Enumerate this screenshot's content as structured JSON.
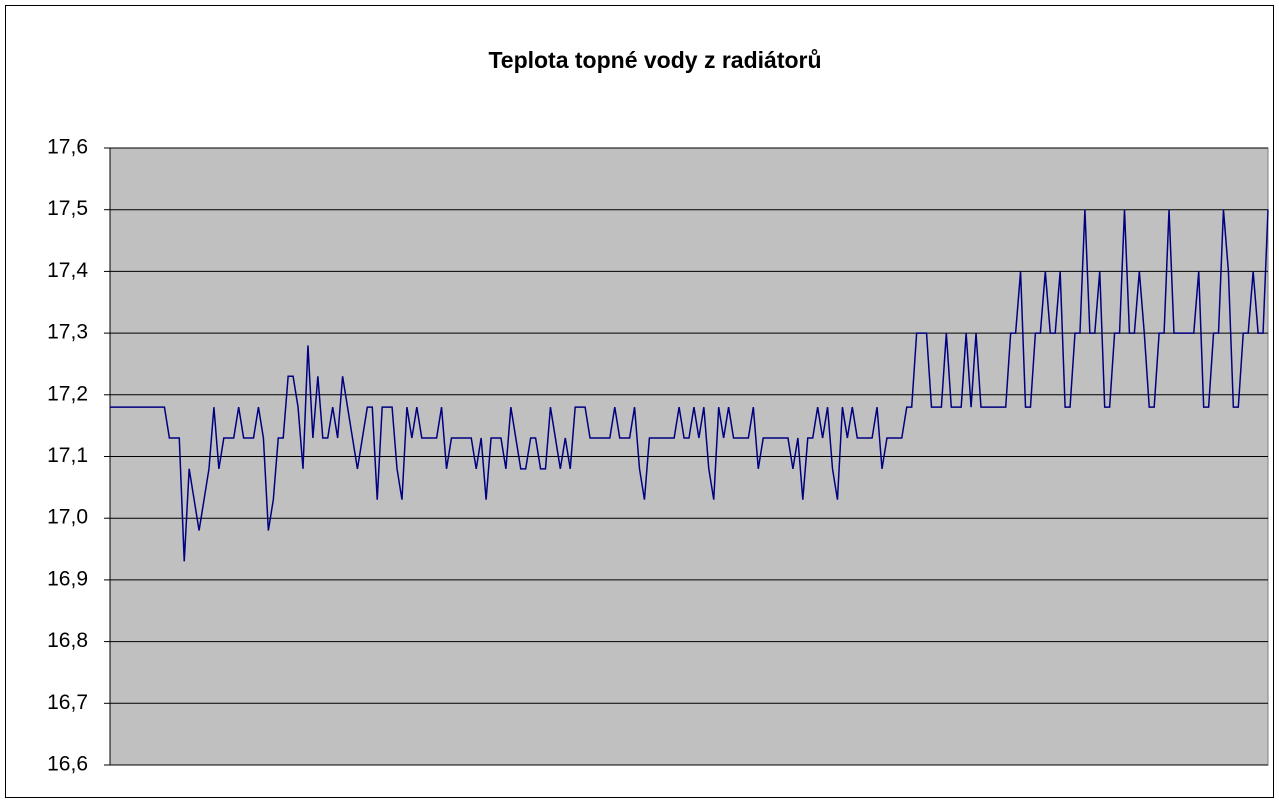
{
  "chart_data": {
    "type": "line",
    "title": "Teplota topné vody z radiátorů",
    "series": [
      {
        "name": null,
        "color": "#000080",
        "values": [
          17.18,
          17.18,
          17.18,
          17.18,
          17.18,
          17.18,
          17.18,
          17.18,
          17.18,
          17.18,
          17.18,
          17.18,
          17.13,
          17.13,
          17.13,
          16.93,
          17.08,
          17.03,
          16.98,
          17.03,
          17.08,
          17.18,
          17.08,
          17.13,
          17.13,
          17.13,
          17.18,
          17.13,
          17.13,
          17.13,
          17.18,
          17.13,
          16.98,
          17.03,
          17.13,
          17.13,
          17.23,
          17.23,
          17.18,
          17.08,
          17.28,
          17.13,
          17.23,
          17.13,
          17.13,
          17.18,
          17.13,
          17.23,
          17.18,
          17.13,
          17.08,
          17.13,
          17.18,
          17.18,
          17.03,
          17.18,
          17.18,
          17.18,
          17.08,
          17.03,
          17.18,
          17.13,
          17.18,
          17.13,
          17.13,
          17.13,
          17.13,
          17.18,
          17.08,
          17.13,
          17.13,
          17.13,
          17.13,
          17.13,
          17.08,
          17.13,
          17.03,
          17.13,
          17.13,
          17.13,
          17.08,
          17.18,
          17.13,
          17.08,
          17.08,
          17.13,
          17.13,
          17.08,
          17.08,
          17.18,
          17.13,
          17.08,
          17.13,
          17.08,
          17.18,
          17.18,
          17.18,
          17.13,
          17.13,
          17.13,
          17.13,
          17.13,
          17.18,
          17.13,
          17.13,
          17.13,
          17.18,
          17.08,
          17.03,
          17.13,
          17.13,
          17.13,
          17.13,
          17.13,
          17.13,
          17.18,
          17.13,
          17.13,
          17.18,
          17.13,
          17.18,
          17.08,
          17.03,
          17.18,
          17.13,
          17.18,
          17.13,
          17.13,
          17.13,
          17.13,
          17.18,
          17.08,
          17.13,
          17.13,
          17.13,
          17.13,
          17.13,
          17.13,
          17.08,
          17.13,
          17.03,
          17.13,
          17.13,
          17.18,
          17.13,
          17.18,
          17.08,
          17.03,
          17.18,
          17.13,
          17.18,
          17.13,
          17.13,
          17.13,
          17.13,
          17.18,
          17.08,
          17.13,
          17.13,
          17.13,
          17.13,
          17.18,
          17.18,
          17.3,
          17.3,
          17.3,
          17.18,
          17.18,
          17.18,
          17.3,
          17.18,
          17.18,
          17.18,
          17.3,
          17.18,
          17.3,
          17.18,
          17.18,
          17.18,
          17.18,
          17.18,
          17.18,
          17.3,
          17.3,
          17.4,
          17.18,
          17.18,
          17.3,
          17.3,
          17.4,
          17.3,
          17.3,
          17.4,
          17.18,
          17.18,
          17.3,
          17.3,
          17.5,
          17.3,
          17.3,
          17.4,
          17.18,
          17.18,
          17.3,
          17.3,
          17.5,
          17.3,
          17.3,
          17.4,
          17.3,
          17.18,
          17.18,
          17.3,
          17.3,
          17.5,
          17.3,
          17.3,
          17.3,
          17.3,
          17.3,
          17.4,
          17.18,
          17.18,
          17.3,
          17.3,
          17.5,
          17.4,
          17.18,
          17.18,
          17.3,
          17.3,
          17.4,
          17.3,
          17.3,
          17.5
        ]
      }
    ],
    "ylim": [
      16.6,
      17.6
    ],
    "yticks": [
      {
        "value": 16.6,
        "label": "16,6"
      },
      {
        "value": 16.7,
        "label": "16,7"
      },
      {
        "value": 16.8,
        "label": "16,8"
      },
      {
        "value": 16.9,
        "label": "16,9"
      },
      {
        "value": 17.0,
        "label": "17,0"
      },
      {
        "value": 17.1,
        "label": "17,1"
      },
      {
        "value": 17.2,
        "label": "17,2"
      },
      {
        "value": 17.3,
        "label": "17,3"
      },
      {
        "value": 17.4,
        "label": "17,4"
      },
      {
        "value": 17.5,
        "label": "17,5"
      },
      {
        "value": 17.6,
        "label": "17,6"
      }
    ],
    "grid": true,
    "plot_background": "#c0c0c0"
  }
}
